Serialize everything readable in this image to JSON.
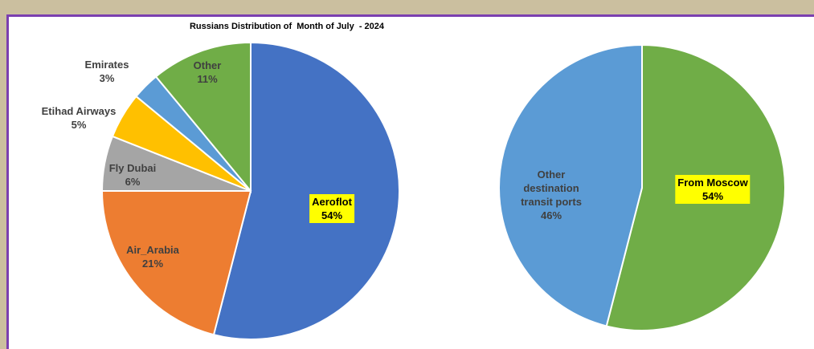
{
  "chart_data": [
    {
      "type": "pie",
      "title": "Russians Distribution of  Month of July  - 2024",
      "categories": [
        "Aeroflot",
        "Air_Arabia",
        "Fly Dubai",
        "Etihad Airways",
        "Emirates",
        "Other"
      ],
      "values": [
        54,
        21,
        6,
        5,
        3,
        11
      ],
      "value_labels": [
        "54%",
        "21%",
        "6%",
        "5%",
        "3%",
        "11%"
      ],
      "colors": [
        "#4472c4",
        "#ed7d31",
        "#a5a5a5",
        "#ffc000",
        "#5b9bd5",
        "#70ad47"
      ]
    },
    {
      "type": "pie",
      "categories": [
        "From Moscow",
        "Other destination transit ports"
      ],
      "values": [
        54,
        46
      ],
      "value_labels": [
        "54%",
        "46%"
      ],
      "colors": [
        "#70ad47",
        "#5b9bd5"
      ]
    }
  ]
}
